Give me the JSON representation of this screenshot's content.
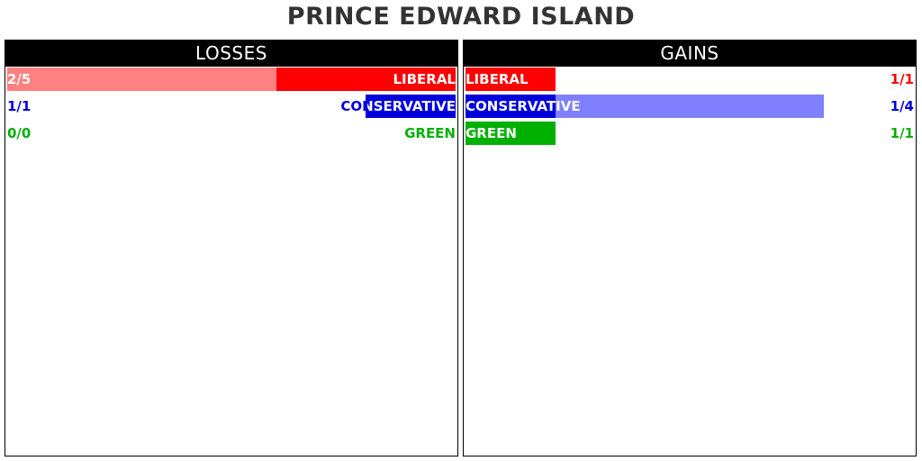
{
  "title": "PRINCE EDWARD ISLAND",
  "colors": {
    "liberal": "#ff0000",
    "conservative": "#0000dd",
    "green": "#00b000",
    "liberal_light": "#ff8080",
    "conservative_light": "#8080ff",
    "green_light": "#80d880",
    "header_bg": "#000000",
    "header_text": "#ffffff",
    "title_text": "#333333"
  },
  "chart_data": [
    {
      "type": "bar",
      "title": "LOSSES",
      "orientation": "horizontal",
      "direction": "right-to-left",
      "scale_max": 5,
      "categories": [
        "LIBERAL",
        "CONSERVATIVE",
        "GREEN"
      ],
      "series": [
        {
          "values": [
            2,
            1,
            0
          ]
        },
        {
          "values": [
            5,
            1,
            0
          ]
        }
      ],
      "labels": [
        "2/5",
        "1/1",
        "0/0"
      ]
    },
    {
      "type": "bar",
      "title": "GAINS",
      "orientation": "horizontal",
      "direction": "left-to-right",
      "scale_max": 5,
      "categories": [
        "LIBERAL",
        "CONSERVATIVE",
        "GREEN"
      ],
      "series": [
        {
          "values": [
            1,
            1,
            1
          ]
        },
        {
          "values": [
            1,
            4,
            1
          ]
        }
      ],
      "labels": [
        "1/1",
        "1/4",
        "1/1"
      ]
    }
  ]
}
